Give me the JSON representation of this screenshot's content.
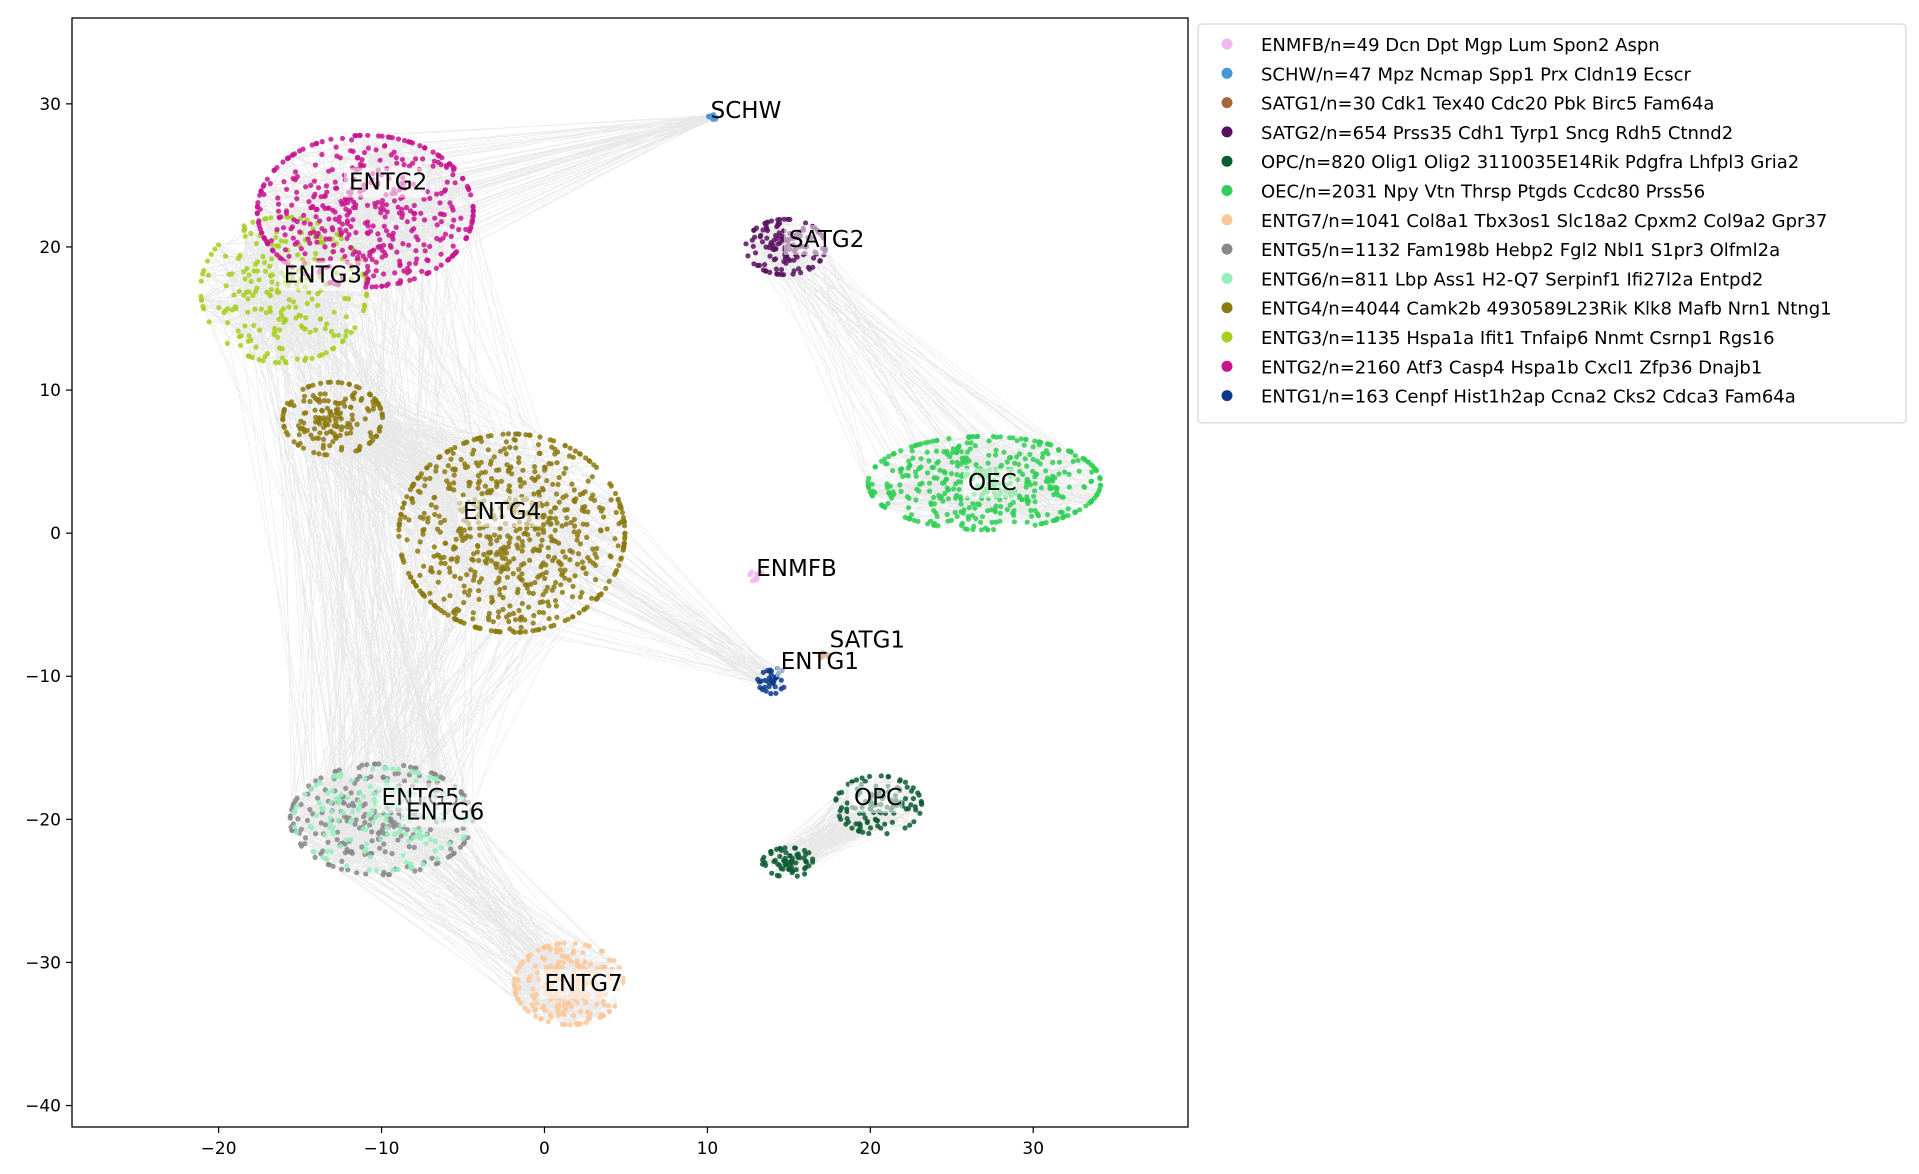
{
  "chart_data": {
    "type": "scatter",
    "title": "",
    "xlabel": "",
    "ylabel": "",
    "xlim": [
      -29,
      39.5
    ],
    "ylim": [
      -41.5,
      36
    ],
    "xticks": [
      -20,
      -10,
      0,
      10,
      20,
      30
    ],
    "yticks": [
      -40,
      -30,
      -20,
      -10,
      0,
      10,
      20,
      30
    ],
    "grid": false,
    "legend_position": "outside-top-right",
    "edge_color": "#bdbdbd",
    "series": [
      {
        "name": "ENMFB/n=49 Dcn Dpt Mgp Lum Spon2 Aspn",
        "label": "ENMFB",
        "color": "#f2b6f0",
        "n": 49,
        "label_pos": [
          13,
          -3
        ]
      },
      {
        "name": "SCHW/n=47 Mpz Ncmap Spp1 Prx Cldn19 Ecscr",
        "label": "SCHW",
        "color": "#4a97d6",
        "n": 47,
        "label_pos": [
          10.2,
          29
        ]
      },
      {
        "name": "SATG1/n=30 Cdk1 Tex40 Cdc20 Pbk Birc5 Fam64a",
        "label": "SATG1",
        "color": "#a8673b",
        "n": 30,
        "label_pos": [
          17.5,
          -8
        ]
      },
      {
        "name": "SATG2/n=654 Prss35 Cdh1 Tyrp1 Sncg Rdh5 Ctnnd2",
        "label": "SATG2",
        "color": "#5a1060",
        "n": 654,
        "label_pos": [
          15,
          20
        ]
      },
      {
        "name": "OPC/n=820 Olig1 Olig2 3110035E14Rik Pdgfra Lhfpl3 Gria2",
        "label": "OPC",
        "color": "#0a5a32",
        "n": 820,
        "label_pos": [
          19,
          -19
        ]
      },
      {
        "name": "OEC/n=2031 Npy Vtn Thrsp Ptgds Ccdc80 Prss56",
        "label": "OEC",
        "color": "#2fcf55",
        "n": 2031,
        "label_pos": [
          26,
          3
        ]
      },
      {
        "name": "ENTG7/n=1041 Col8a1 Tbx3os1 Slc18a2 Cpxm2 Col9a2 Gpr37",
        "label": "ENTG7",
        "color": "#fcc89a",
        "n": 1041,
        "label_pos": [
          0,
          -32
        ]
      },
      {
        "name": "ENTG5/n=1132 Fam198b Hebp2 Fgl2 Nbl1 S1pr3 Olfml2a",
        "label": "ENTG5",
        "color": "#888888",
        "n": 1132,
        "label_pos": [
          -10,
          -19
        ]
      },
      {
        "name": "ENTG6/n=811 Lbp Ass1 H2-Q7 Serpinf1 Ifi27l2a Entpd2",
        "label": "ENTG6",
        "color": "#95eebc",
        "n": 811,
        "label_pos": [
          -8.5,
          -20
        ]
      },
      {
        "name": "ENTG4/n=4044 Camk2b 4930589L23Rik Klk8 Mafb Nrn1 Ntng1",
        "label": "ENTG4",
        "color": "#8c7a10",
        "n": 4044,
        "label_pos": [
          -5,
          1
        ]
      },
      {
        "name": "ENTG3/n=1135 Hspa1a Ifit1 Tnfaip6 Nnmt Csrnp1 Rgs16",
        "label": "ENTG3",
        "color": "#a6cf1e",
        "n": 1135,
        "label_pos": [
          -16,
          17.5
        ]
      },
      {
        "name": "ENTG2/n=2160 Atf3 Casp4 Hspa1b Cxcl1 Zfp36 Dnajb1",
        "label": "ENTG2",
        "color": "#c8148f",
        "n": 2160,
        "label_pos": [
          -12,
          24
        ]
      },
      {
        "name": "ENTG1/n=163 Cenpf Hist1h2ap Ccna2 Cks2 Cdca3 Fam64a",
        "label": "ENTG1",
        "color": "#0b3a8c",
        "n": 163,
        "label_pos": [
          14.5,
          -9.5
        ]
      }
    ]
  }
}
